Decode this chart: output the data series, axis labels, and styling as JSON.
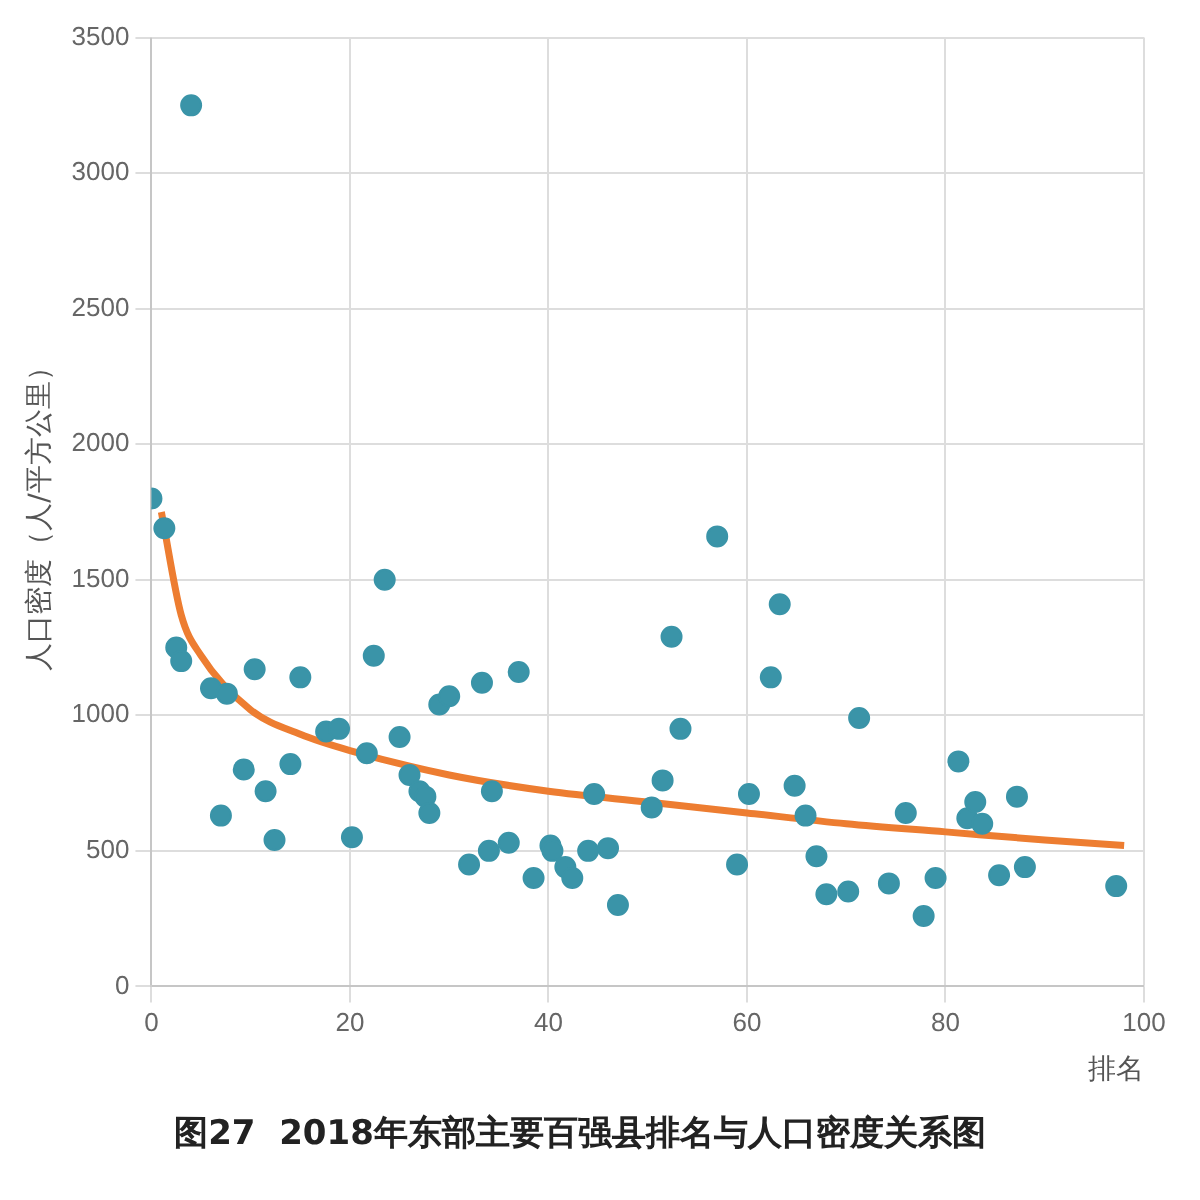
{
  "chart_data": {
    "type": "scatter",
    "title": "图27  2018年东部主要百强县排名与人口密度关系图",
    "xlabel": "排名",
    "ylabel": "人口密度（人/平方公里）",
    "xlim": [
      0,
      100
    ],
    "xticks": [
      0,
      20,
      40,
      60,
      80,
      100
    ],
    "ylim": [
      0,
      3500
    ],
    "yticks": [
      0,
      500,
      1000,
      1500,
      2000,
      2500,
      3000,
      3500
    ],
    "grid": true,
    "legend": false,
    "marker": "circle",
    "series": [
      {
        "type": "scatter",
        "color": "#3a94a8",
        "x": [
          0,
          1.3,
          4,
          2.5,
          3,
          6,
          7.6,
          7,
          9.3,
          10.4,
          11.5,
          12.4,
          14,
          15,
          17.6,
          18.9,
          20.2,
          21.7,
          22.4,
          23.5,
          25,
          26,
          27,
          27.6,
          28,
          29,
          30,
          33.3,
          32,
          34,
          34.3,
          36,
          37,
          38.5,
          40.2,
          40.4,
          41.7,
          42.4,
          44,
          44.6,
          46,
          47,
          50.4,
          51.5,
          52.4,
          53.3,
          57,
          59,
          60.2,
          62.4,
          63.3,
          64.8,
          65.9,
          67,
          68,
          70.2,
          71.3,
          74.3,
          76,
          77.8,
          79,
          81.3,
          82.2,
          83,
          83.7,
          85.4,
          87.2,
          88,
          97.2
        ],
        "values": [
          1800,
          1690,
          3250,
          1250,
          1200,
          1100,
          1080,
          630,
          800,
          1170,
          720,
          540,
          820,
          1140,
          940,
          950,
          550,
          860,
          1220,
          1500,
          920,
          780,
          720,
          700,
          640,
          1040,
          1070,
          1120,
          450,
          500,
          720,
          530,
          1160,
          400,
          520,
          500,
          440,
          400,
          500,
          710,
          510,
          300,
          660,
          760,
          1290,
          950,
          1660,
          450,
          710,
          1140,
          1410,
          740,
          630,
          480,
          340,
          350,
          990,
          380,
          640,
          260,
          400,
          830,
          620,
          680,
          600,
          410,
          700,
          440,
          370
        ]
      },
      {
        "type": "line",
        "color": "#ed7d31",
        "marker": "none",
        "x": [
          1,
          3,
          5,
          10,
          15,
          20,
          30,
          40,
          50,
          60,
          70,
          80,
          90,
          98
        ],
        "values": [
          1750,
          1370,
          1220,
          1020,
          930,
          870,
          780,
          720,
          680,
          640,
          600,
          570,
          540,
          520
        ]
      }
    ]
  }
}
